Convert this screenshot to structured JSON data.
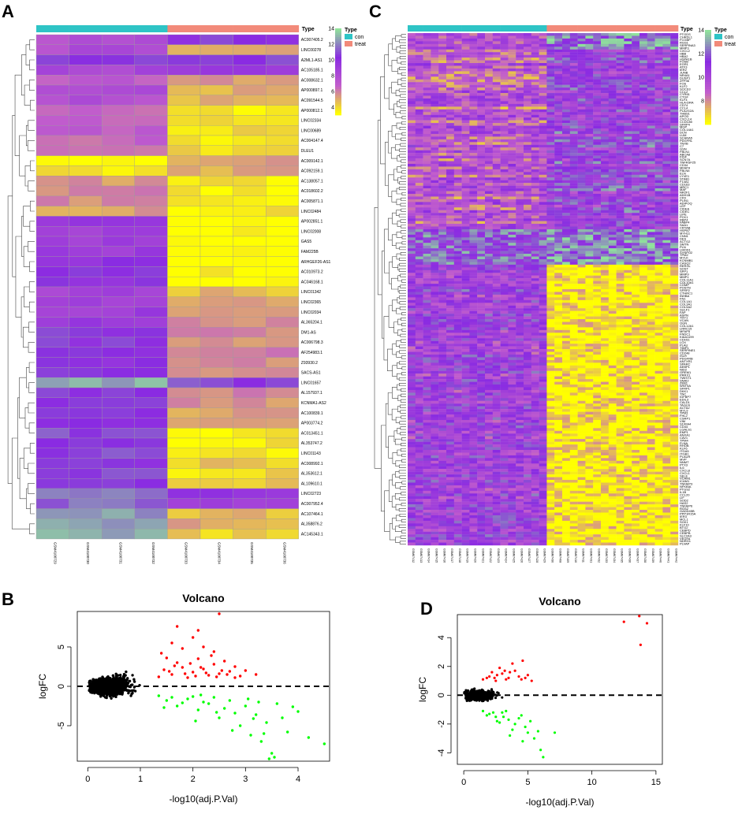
{
  "panels": {
    "a": "A",
    "b": "B",
    "c": "C",
    "d": "D"
  },
  "chart_data": [
    {
      "id": "A",
      "type": "heatmap",
      "title": "",
      "legend_title": "Type",
      "groups": [
        {
          "name": "con",
          "color": "#2ec4c6"
        },
        {
          "name": "treat",
          "color": "#f28a7a"
        }
      ],
      "group_counts": [
        4,
        4
      ],
      "color_scale": {
        "ticks": [
          4,
          6,
          8,
          10,
          12,
          14
        ],
        "min": 3,
        "max": 14,
        "colors": [
          "#ffff00",
          "#c25ecc",
          "#8a2be2",
          "#8fe29b"
        ]
      },
      "samples": [
        "GSM4100729",
        "GSM4100730",
        "GSM4100731",
        "GSM4100732",
        "GSM4100733",
        "GSM4100734",
        "GSM4100735",
        "GSM4100736"
      ],
      "genes": [
        "AC007405.2",
        "LINC00278",
        "A2ML1-AS1",
        "AC105185.1",
        "AC008632.1",
        "AP000897.1",
        "AC091544.5",
        "AP000812.1",
        "LINC02334",
        "LINC00689",
        "AC004147.4",
        "DLEU1",
        "AC009142.1",
        "AC092159.1",
        "AC138057.1",
        "AC018602.2",
        "AC005871.1",
        "LINC02484",
        "AP002851.1",
        "LINC02008",
        "GAS5",
        "FAM225B",
        "ARHGEF26-AS1",
        "AC010973.2",
        "AC046168.1",
        "LINC01342",
        "LINC02365",
        "LINC02034",
        "AL365204.1",
        "DM1-AS",
        "AC006798.3",
        "AF254983.1",
        "Z93930.2",
        "SACS-AS1",
        "LINC01657",
        "AL157937.1",
        "KCNMA1-AS2",
        "AC100839.1",
        "AP003774.2",
        "AC013451.1",
        "AL353747.2",
        "LINC01143",
        "AC008992.1",
        "AL353612.1",
        "AL109610.1",
        "LINC02723",
        "AC007952.4",
        "AC107464.1",
        "AL358876.2",
        "AC145343.1"
      ],
      "values_con": [
        7.5,
        7.8,
        10.5,
        8.2,
        7.0,
        8.0,
        7.6,
        6.8,
        6.5,
        6.7,
        6.6,
        6.4,
        3.2,
        3.5,
        5.4,
        5.6,
        5.5,
        5.3,
        9.6,
        8.8,
        8.9,
        9.2,
        9.8,
        10.2,
        10.0,
        8.5,
        8.7,
        9.0,
        9.4,
        10.6,
        10.4,
        10.2,
        10.1,
        10.3,
        13.0,
        10.5,
        10.8,
        10.6,
        10.4,
        10.9,
        10.7,
        11.0,
        10.5,
        10.8,
        10.9,
        12.2,
        11.5,
        12.4,
        12.8,
        13.0
      ],
      "values_treat": [
        10.5,
        4.8,
        10.8,
        9.5,
        5.2,
        4.8,
        4.6,
        3.5,
        3.6,
        3.7,
        3.5,
        3.8,
        5.2,
        5.0,
        3.4,
        3.3,
        3.5,
        3.4,
        3.0,
        3.0,
        3.0,
        3.0,
        3.1,
        3.1,
        3.2,
        4.6,
        4.8,
        5.0,
        5.4,
        5.6,
        5.2,
        6.0,
        5.6,
        5.8,
        10.8,
        5.8,
        5.5,
        5.0,
        4.8,
        3.3,
        3.4,
        3.5,
        4.2,
        3.8,
        4.0,
        9.5,
        8.8,
        4.5,
        5.0,
        4.0
      ]
    },
    {
      "id": "C",
      "type": "heatmap",
      "legend_title": "Type",
      "groups": [
        {
          "name": "con",
          "color": "#2ec4c6"
        },
        {
          "name": "treat",
          "color": "#f28a7a"
        }
      ],
      "group_counts": [
        18,
        17
      ],
      "color_scale": {
        "ticks": [
          8,
          10,
          12,
          14
        ],
        "min": 6,
        "max": 14,
        "colors": [
          "#ffff00",
          "#c25ecc",
          "#8a2be2",
          "#8fe29b"
        ]
      },
      "samples": [
        "GSM87412",
        "GSM87413",
        "GSM87414",
        "GSM87415",
        "GSM87416",
        "GSM87417",
        "GSM87418",
        "GSM87419",
        "GSM87420",
        "GSM87421",
        "GSM87422",
        "GSM87423",
        "GSM87424",
        "GSM87425",
        "GSM87426",
        "GSM87427",
        "GSM87428",
        "GSM87429",
        "GSM87430",
        "GSM87408",
        "GSM87409",
        "GSM87410",
        "GSM87411",
        "GSM87431",
        "GSM87432",
        "GSM87433",
        "GSM87434",
        "GSM87435",
        "GSM87436",
        "GSM87437",
        "GSM87438",
        "GSM87439",
        "GSM87440",
        "GSM87441",
        "GSM87442"
      ],
      "genes": [
        "PTGDS",
        "CHRDL1",
        "FCGBP",
        "RGS1",
        "SERPINA3",
        "MMP3",
        "CXCL2",
        "HBB",
        "HBA2",
        "HSPA1B",
        "FOSB",
        "EGR1",
        "ATF3",
        "IER2",
        "JUNB",
        "NR4A1",
        "DUSP1",
        "ZFP36",
        "FOS",
        "KLF2",
        "SOCS3",
        "CCL2",
        "CYR61",
        "CTGF",
        "KLF4",
        "HLA-DRA",
        "CD74",
        "CCL4",
        "PLA2G2A",
        "THBS1",
        "APOD",
        "CXCL14",
        "CCDC80",
        "SFRP4",
        "MGP",
        "COL14A1",
        "DCN",
        "LUM",
        "SCARA5",
        "PDGFRL",
        "TNXB",
        "C7",
        "GSN",
        "FBLN1",
        "ABCA8",
        "FIGF",
        "SCN7A",
        "TNFRSF25",
        "CD34",
        "MFAP4",
        "FBLN5",
        "ELN",
        "LYVE1",
        "STAB1",
        "F13A1",
        "CD163",
        "MRC1",
        "MAF",
        "NR2F1",
        "ADH1B",
        "CFD",
        "PLIN1",
        "ADIPOQ",
        "LEP",
        "CIDEA",
        "CIDEC",
        "LIPE",
        "PCK1",
        "RBP4",
        "FABP4",
        "SAA1",
        "CRYAB",
        "HSPB7",
        "MYH11",
        "CNN1",
        "DES",
        "ACTG2",
        "SMTN",
        "PLN",
        "LMOD1",
        "SYNPO2",
        "TPM2",
        "MYLK",
        "KCNMB1",
        "CASQ2",
        "RERGL",
        "SOST",
        "SPP1",
        "MMP9",
        "MMP1",
        "COL11A1",
        "COL10A1",
        "COMP",
        "POSTN",
        "SFRP2",
        "CTHRC1",
        "INHBA",
        "FN1",
        "COL1A1",
        "COL3A1",
        "COL5A2",
        "SULF1",
        "FAP",
        "ASPN",
        "THY1",
        "VCAN",
        "OGN",
        "COL12A1",
        "LRRC15",
        "MFAP5",
        "FNDC1",
        "KIAA1199",
        "CDH11",
        "LOX",
        "PLAU",
        "TIMP1",
        "SERPINE1",
        "CD248",
        "ISLR",
        "PDGFRB",
        "ANTXR1",
        "SPARC",
        "AEBP1",
        "NID2",
        "GREM1",
        "PRRX1",
        "TWIST1",
        "SNAI2",
        "ZEB1",
        "WNT5A",
        "SFRP1",
        "DKK1",
        "TNC",
        "IGFBP7",
        "EDIL3",
        "CALD1",
        "TAGLN",
        "ACTA2",
        "MYL9",
        "TPM1",
        "FHL2",
        "CSRP1",
        "VIM",
        "S100A4",
        "CD44",
        "LGALS1",
        "EMP1",
        "ANXA1",
        "CAV1",
        "TPM4",
        "FLNA",
        "RHOB",
        "KLF6",
        "ITGA5",
        "ITGB1",
        "PLAUR",
        "MVP",
        "NNMT",
        "PTX3",
        "IL6",
        "CXCL8",
        "CXCL1",
        "SELE",
        "VCAM1",
        "ICAM1",
        "TNFAIP3",
        "NFKBIA",
        "PTGS2",
        "IL1B",
        "CCL20",
        "LIF",
        "SOD2",
        "HAS2",
        "TNFAIP6",
        "RGS2",
        "GADD45B",
        "PPP1R15A",
        "IER3",
        "MCL1",
        "SGK1",
        "KLF10",
        "BTG2",
        "CEBPD",
        "CEBPB",
        "SLC2A3",
        "VEGFA",
        "NDRG1",
        "PLVAP"
      ],
      "note": "Gene and sample labels in panel C are very small; listed names approximate."
    },
    {
      "id": "B",
      "type": "scatter",
      "title": "Volcano",
      "xlabel": "-log10(adj.P.Val)",
      "ylabel": "logFC",
      "xlim": [
        -0.2,
        4.6
      ],
      "ylim": [
        -9.5,
        9.5
      ],
      "xticks": [
        0,
        1,
        2,
        3,
        4
      ],
      "yticks": [
        -5,
        0,
        5
      ],
      "threshold_x": 1.3,
      "reference_line_y": 0,
      "colors": {
        "up": "#ff0000",
        "down": "#00ff00",
        "ns": "#000000"
      },
      "points": {
        "up": [
          [
            1.35,
            1.2
          ],
          [
            1.45,
            2.1
          ],
          [
            1.6,
            1.5
          ],
          [
            1.7,
            3.0
          ],
          [
            1.8,
            2.4
          ],
          [
            1.9,
            1.1
          ],
          [
            2.0,
            1.8
          ],
          [
            2.1,
            3.5
          ],
          [
            2.2,
            2.2
          ],
          [
            2.3,
            1.4
          ],
          [
            2.4,
            2.8
          ],
          [
            2.5,
            1.6
          ],
          [
            2.6,
            3.2
          ],
          [
            2.7,
            1.9
          ],
          [
            2.8,
            2.5
          ],
          [
            2.9,
            1.3
          ],
          [
            3.0,
            2.0
          ],
          [
            3.2,
            1.5
          ],
          [
            1.4,
            4.2
          ],
          [
            1.6,
            5.5
          ],
          [
            1.8,
            4.8
          ],
          [
            2.0,
            6.2
          ],
          [
            2.2,
            5.0
          ],
          [
            2.4,
            4.4
          ],
          [
            1.5,
            3.6
          ],
          [
            2.5,
            9.2
          ],
          [
            1.7,
            7.6
          ],
          [
            2.1,
            7.1
          ],
          [
            2.8,
            1.1
          ],
          [
            1.95,
            2.9
          ],
          [
            2.35,
            3.9
          ],
          [
            1.55,
            1.9
          ],
          [
            1.65,
            2.6
          ],
          [
            1.85,
            1.6
          ],
          [
            2.05,
            1.3
          ],
          [
            2.15,
            2.4
          ],
          [
            2.25,
            1.7
          ],
          [
            2.45,
            1.2
          ],
          [
            2.55,
            2.0
          ],
          [
            2.65,
            1.5
          ]
        ],
        "down": [
          [
            1.35,
            -1.2
          ],
          [
            1.5,
            -1.8
          ],
          [
            1.7,
            -2.5
          ],
          [
            1.9,
            -1.6
          ],
          [
            2.1,
            -3.0
          ],
          [
            2.3,
            -2.2
          ],
          [
            2.5,
            -4.0
          ],
          [
            2.7,
            -1.8
          ],
          [
            2.9,
            -5.0
          ],
          [
            3.0,
            -2.5
          ],
          [
            3.1,
            -6.2
          ],
          [
            3.2,
            -3.6
          ],
          [
            3.3,
            -7.0
          ],
          [
            3.4,
            -4.6
          ],
          [
            3.5,
            -8.5
          ],
          [
            3.6,
            -2.2
          ],
          [
            3.8,
            -5.8
          ],
          [
            4.0,
            -3.2
          ],
          [
            4.2,
            -6.5
          ],
          [
            4.5,
            -7.3
          ],
          [
            3.45,
            -9.2
          ],
          [
            3.55,
            -9.0
          ],
          [
            2.0,
            -1.3
          ],
          [
            2.2,
            -2.0
          ],
          [
            2.4,
            -1.4
          ],
          [
            2.6,
            -2.8
          ],
          [
            2.8,
            -3.4
          ],
          [
            3.05,
            -1.6
          ],
          [
            3.25,
            -2.0
          ],
          [
            1.6,
            -1.4
          ],
          [
            1.8,
            -2.1
          ],
          [
            2.05,
            -4.4
          ],
          [
            2.45,
            -3.3
          ],
          [
            2.75,
            -5.6
          ],
          [
            3.15,
            -4.1
          ],
          [
            3.35,
            -6.0
          ],
          [
            3.7,
            -4.0
          ],
          [
            3.9,
            -2.6
          ],
          [
            1.45,
            -2.7
          ],
          [
            2.15,
            -1.1
          ]
        ]
      }
    },
    {
      "id": "D",
      "type": "scatter",
      "title": "Volcano",
      "xlabel": "-log10(adj.P.Val)",
      "ylabel": "logFC",
      "xlim": [
        -0.5,
        15.5
      ],
      "ylim": [
        -4.8,
        5.6
      ],
      "xticks": [
        0,
        5,
        10,
        15
      ],
      "yticks": [
        -4,
        -2,
        0,
        2,
        4
      ],
      "threshold_x": 1.3,
      "reference_line_y": 0,
      "colors": {
        "up": "#ff0000",
        "down": "#00ff00",
        "ns": "#000000"
      },
      "points": {
        "up": [
          [
            1.5,
            1.1
          ],
          [
            2.0,
            1.3
          ],
          [
            2.5,
            1.0
          ],
          [
            3.0,
            1.5
          ],
          [
            3.5,
            1.2
          ],
          [
            4.0,
            1.7
          ],
          [
            4.5,
            1.1
          ],
          [
            5.0,
            1.4
          ],
          [
            2.2,
            1.6
          ],
          [
            2.8,
            1.9
          ],
          [
            3.3,
            1.1
          ],
          [
            3.8,
            2.2
          ],
          [
            4.3,
            1.3
          ],
          [
            5.3,
            1.0
          ],
          [
            1.8,
            1.2
          ],
          [
            2.6,
            1.4
          ],
          [
            3.6,
            1.6
          ],
          [
            4.8,
            1.2
          ],
          [
            12.5,
            5.1
          ],
          [
            13.7,
            5.5
          ],
          [
            14.3,
            5.0
          ],
          [
            13.8,
            3.5
          ],
          [
            4.6,
            2.4
          ],
          [
            3.2,
            1.7
          ],
          [
            2.4,
            1.2
          ]
        ],
        "down": [
          [
            1.5,
            -1.1
          ],
          [
            2.0,
            -1.3
          ],
          [
            2.5,
            -1.5
          ],
          [
            3.0,
            -1.2
          ],
          [
            3.5,
            -1.7
          ],
          [
            4.0,
            -2.0
          ],
          [
            4.5,
            -1.4
          ],
          [
            5.0,
            -2.6
          ],
          [
            5.5,
            -3.0
          ],
          [
            6.0,
            -3.8
          ],
          [
            6.2,
            -4.3
          ],
          [
            2.8,
            -1.9
          ],
          [
            3.3,
            -1.1
          ],
          [
            3.8,
            -2.4
          ],
          [
            4.3,
            -1.6
          ],
          [
            4.8,
            -2.2
          ],
          [
            5.2,
            -1.8
          ],
          [
            5.8,
            -2.5
          ],
          [
            1.8,
            -1.4
          ],
          [
            2.3,
            -1.2
          ],
          [
            3.1,
            -1.5
          ],
          [
            3.6,
            -2.8
          ],
          [
            4.6,
            -3.2
          ],
          [
            7.1,
            -2.6
          ],
          [
            2.6,
            -1.8
          ]
        ]
      }
    }
  ]
}
